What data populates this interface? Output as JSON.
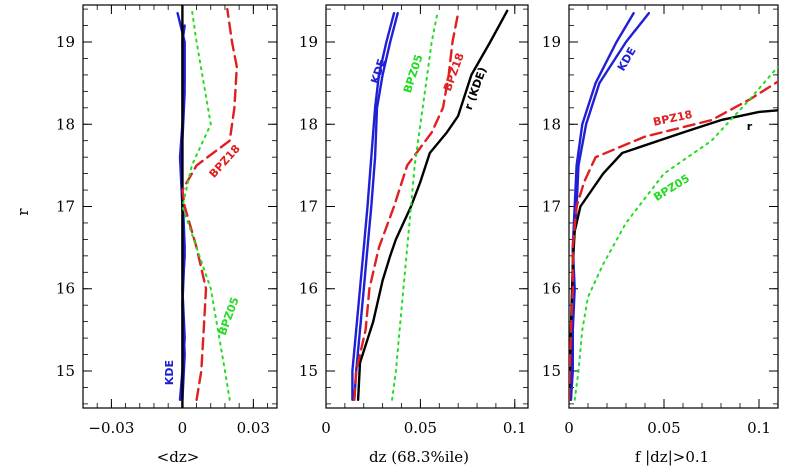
{
  "chart_data": [
    {
      "type": "line",
      "xlabel": "<dz>",
      "ylabel": "r",
      "xlim": [
        -0.042,
        0.04
      ],
      "ylim": [
        14.55,
        19.45
      ],
      "xticks": [
        -0.03,
        0,
        0.03
      ],
      "xtick_labels": [
        "−0.03",
        "0",
        "0.03"
      ],
      "yticks": [
        15,
        16,
        17,
        18,
        19
      ],
      "ytick_labels": [
        "15",
        "16",
        "17",
        "18",
        "19"
      ],
      "series": [
        {
          "key": "kde",
          "color": "#1f1fd6",
          "dash": "solid",
          "points": [
            [
              -0.001,
              14.65
            ],
            [
              0.0,
              15.0
            ],
            [
              0.001,
              15.4
            ],
            [
              0.0,
              16.0
            ],
            [
              0.001,
              16.4
            ],
            [
              0.0,
              17.0
            ],
            [
              -0.001,
              17.6
            ],
            [
              0.0,
              18.0
            ],
            [
              0.001,
              18.5
            ],
            [
              0.001,
              19.0
            ],
            [
              -0.002,
              19.35
            ]
          ]
        },
        {
          "key": "kde_2",
          "color": "#1f1fd6",
          "dash": "solid",
          "points": [
            [
              0.0,
              14.65
            ],
            [
              0.001,
              15.2
            ],
            [
              0.0,
              15.8
            ],
            [
              0.001,
              16.5
            ],
            [
              0.0,
              17.2
            ],
            [
              0.0,
              17.8
            ],
            [
              0.001,
              18.4
            ],
            [
              0.0,
              19.0
            ],
            [
              0.001,
              19.2
            ]
          ]
        },
        {
          "key": "r_kde",
          "color": "#000000",
          "dash": "solid",
          "points": [
            [
              0.0,
              14.55
            ],
            [
              0.0,
              19.45
            ]
          ]
        },
        {
          "key": "bpz18",
          "color": "#e02020",
          "dash": "dashed",
          "points": [
            [
              0.006,
              14.65
            ],
            [
              0.008,
              15.0
            ],
            [
              0.009,
              15.5
            ],
            [
              0.01,
              16.0
            ],
            [
              0.006,
              16.5
            ],
            [
              0.001,
              17.0
            ],
            [
              0.0,
              17.2
            ],
            [
              0.006,
              17.5
            ],
            [
              0.02,
              17.8
            ],
            [
              0.022,
              18.2
            ],
            [
              0.023,
              18.7
            ],
            [
              0.021,
              19.0
            ],
            [
              0.019,
              19.4
            ]
          ]
        },
        {
          "key": "bpz05",
          "color": "#22dd22",
          "dash": "dotted",
          "points": [
            [
              0.02,
              14.65
            ],
            [
              0.018,
              15.0
            ],
            [
              0.015,
              15.5
            ],
            [
              0.012,
              16.0
            ],
            [
              0.006,
              16.5
            ],
            [
              0.0,
              17.0
            ],
            [
              0.004,
              17.5
            ],
            [
              0.012,
              18.0
            ],
            [
              0.009,
              18.5
            ],
            [
              0.006,
              19.0
            ],
            [
              0.004,
              19.4
            ]
          ]
        }
      ],
      "annotations": [
        {
          "text": "KDE",
          "color": "#1f1fd6",
          "x": -0.004,
          "y": 14.98,
          "rotate": -90
        },
        {
          "text": "BPZ18",
          "color": "#e02020",
          "x": 0.019,
          "y": 17.52,
          "rotate": -48
        },
        {
          "text": "BPZ05",
          "color": "#22dd22",
          "x": 0.021,
          "y": 15.65,
          "rotate": -70
        }
      ]
    },
    {
      "type": "line",
      "xlabel": "dz  (68.3%ile)",
      "ylabel": "",
      "xlim": [
        0,
        0.107
      ],
      "ylim": [
        14.55,
        19.45
      ],
      "xticks": [
        0,
        0.05,
        0.1
      ],
      "xtick_labels": [
        "0",
        "0.05",
        "0.1"
      ],
      "yticks": [
        15,
        16,
        17,
        18,
        19
      ],
      "ytick_labels": [
        "15",
        "16",
        "17",
        "18",
        "19"
      ],
      "series": [
        {
          "key": "kde",
          "color": "#1f1fd6",
          "dash": "solid",
          "points": [
            [
              0.014,
              14.65
            ],
            [
              0.014,
              15.0
            ],
            [
              0.016,
              15.5
            ],
            [
              0.018,
              16.0
            ],
            [
              0.02,
              16.5
            ],
            [
              0.022,
              17.0
            ],
            [
              0.024,
              17.6
            ],
            [
              0.026,
              18.2
            ],
            [
              0.028,
              18.6
            ],
            [
              0.032,
              19.0
            ],
            [
              0.036,
              19.35
            ]
          ]
        },
        {
          "key": "kde_2",
          "color": "#1f1fd6",
          "dash": "solid",
          "points": [
            [
              0.015,
              14.65
            ],
            [
              0.016,
              15.0
            ],
            [
              0.018,
              15.5
            ],
            [
              0.02,
              16.0
            ],
            [
              0.022,
              16.5
            ],
            [
              0.024,
              17.0
            ],
            [
              0.026,
              17.6
            ],
            [
              0.027,
              18.2
            ],
            [
              0.03,
              18.6
            ],
            [
              0.034,
              19.0
            ],
            [
              0.038,
              19.35
            ]
          ]
        },
        {
          "key": "r_kde",
          "color": "#000000",
          "dash": "solid",
          "points": [
            [
              0.017,
              14.65
            ],
            [
              0.018,
              15.1
            ],
            [
              0.025,
              15.6
            ],
            [
              0.03,
              16.1
            ],
            [
              0.034,
              16.4
            ],
            [
              0.037,
              16.6
            ],
            [
              0.045,
              17.0
            ],
            [
              0.05,
              17.3
            ],
            [
              0.055,
              17.65
            ],
            [
              0.064,
              17.9
            ],
            [
              0.07,
              18.1
            ],
            [
              0.077,
              18.6
            ],
            [
              0.087,
              19.0
            ],
            [
              0.096,
              19.38
            ]
          ]
        },
        {
          "key": "bpz18",
          "color": "#e02020",
          "dash": "dashed",
          "points": [
            [
              0.015,
              14.65
            ],
            [
              0.016,
              15.0
            ],
            [
              0.021,
              15.5
            ],
            [
              0.023,
              16.0
            ],
            [
              0.028,
              16.5
            ],
            [
              0.036,
              17.0
            ],
            [
              0.043,
              17.5
            ],
            [
              0.056,
              17.9
            ],
            [
              0.062,
              18.2
            ],
            [
              0.065,
              18.6
            ],
            [
              0.067,
              19.0
            ],
            [
              0.07,
              19.35
            ]
          ]
        },
        {
          "key": "bpz05",
          "color": "#22dd22",
          "dash": "dotted",
          "points": [
            [
              0.035,
              14.65
            ],
            [
              0.037,
              15.0
            ],
            [
              0.039,
              15.5
            ],
            [
              0.041,
              16.0
            ],
            [
              0.043,
              16.5
            ],
            [
              0.045,
              17.0
            ],
            [
              0.047,
              17.5
            ],
            [
              0.05,
              18.0
            ],
            [
              0.053,
              18.5
            ],
            [
              0.056,
              19.0
            ],
            [
              0.059,
              19.35
            ]
          ]
        }
      ],
      "annotations": [
        {
          "text": "KDE",
          "color": "#1f1fd6",
          "x": 0.0295,
          "y": 18.63,
          "rotate": -72
        },
        {
          "text": "BPZ05",
          "color": "#22dd22",
          "x": 0.048,
          "y": 18.6,
          "rotate": -72
        },
        {
          "text": "BPZ18",
          "color": "#e02020",
          "x": 0.0695,
          "y": 18.62,
          "rotate": -70
        },
        {
          "text": "r (KDE)",
          "color": "#000000",
          "x": 0.081,
          "y": 18.42,
          "rotate": -70
        }
      ]
    },
    {
      "type": "line",
      "xlabel": "f  |dz|>0.1",
      "ylabel": "",
      "xlim": [
        0,
        0.11
      ],
      "ylim": [
        14.55,
        19.45
      ],
      "xticks": [
        0,
        0.05,
        0.1
      ],
      "xtick_labels": [
        "0",
        "0.05",
        "0.1"
      ],
      "yticks": [
        15,
        16,
        17,
        18,
        19
      ],
      "ytick_labels": [
        "15",
        "16",
        "17",
        "18",
        "19"
      ],
      "series": [
        {
          "key": "kde",
          "color": "#1f1fd6",
          "dash": "solid",
          "points": [
            [
              0.001,
              14.65
            ],
            [
              0.001,
              15.0
            ],
            [
              0.002,
              15.5
            ],
            [
              0.002,
              16.0
            ],
            [
              0.002,
              16.5
            ],
            [
              0.003,
              17.0
            ],
            [
              0.004,
              17.5
            ],
            [
              0.007,
              18.0
            ],
            [
              0.014,
              18.5
            ],
            [
              0.025,
              19.0
            ],
            [
              0.034,
              19.35
            ]
          ]
        },
        {
          "key": "kde_2",
          "color": "#1f1fd6",
          "dash": "solid",
          "points": [
            [
              0.001,
              14.65
            ],
            [
              0.002,
              15.0
            ],
            [
              0.002,
              15.5
            ],
            [
              0.003,
              16.0
            ],
            [
              0.002,
              16.5
            ],
            [
              0.004,
              17.0
            ],
            [
              0.005,
              17.5
            ],
            [
              0.009,
              18.0
            ],
            [
              0.016,
              18.5
            ],
            [
              0.03,
              19.0
            ],
            [
              0.042,
              19.35
            ]
          ]
        },
        {
          "key": "r_kde",
          "color": "#000000",
          "dash": "solid",
          "points": [
            [
              0.0,
              14.65
            ],
            [
              0.001,
              15.5
            ],
            [
              0.002,
              16.3
            ],
            [
              0.003,
              16.7
            ],
            [
              0.006,
              17.0
            ],
            [
              0.018,
              17.4
            ],
            [
              0.028,
              17.65
            ],
            [
              0.06,
              17.9
            ],
            [
              0.08,
              18.05
            ],
            [
              0.1,
              18.15
            ],
            [
              0.11,
              18.17
            ]
          ]
        },
        {
          "key": "bpz18",
          "color": "#e02020",
          "dash": "dashed",
          "points": [
            [
              0.0,
              14.65
            ],
            [
              0.001,
              15.5
            ],
            [
              0.002,
              16.0
            ],
            [
              0.002,
              16.5
            ],
            [
              0.004,
              17.0
            ],
            [
              0.008,
              17.3
            ],
            [
              0.014,
              17.6
            ],
            [
              0.04,
              17.85
            ],
            [
              0.075,
              18.05
            ],
            [
              0.095,
              18.3
            ],
            [
              0.11,
              18.52
            ]
          ]
        },
        {
          "key": "bpz05",
          "color": "#22dd22",
          "dash": "dotted",
          "points": [
            [
              0.003,
              14.65
            ],
            [
              0.005,
              15.0
            ],
            [
              0.007,
              15.5
            ],
            [
              0.01,
              15.9
            ],
            [
              0.018,
              16.3
            ],
            [
              0.03,
              16.8
            ],
            [
              0.05,
              17.4
            ],
            [
              0.075,
              17.8
            ],
            [
              0.095,
              18.3
            ],
            [
              0.11,
              18.7
            ]
          ]
        }
      ],
      "annotations": [
        {
          "text": "KDE",
          "color": "#1f1fd6",
          "x": 0.032,
          "y": 18.77,
          "rotate": -60
        },
        {
          "text": "BPZ18",
          "color": "#e02020",
          "x": 0.055,
          "y": 18.03,
          "rotate": -12
        },
        {
          "text": "BPZ05",
          "color": "#22dd22",
          "x": 0.055,
          "y": 17.19,
          "rotate": -32
        },
        {
          "text": "r",
          "color": "#000000",
          "x": 0.095,
          "y": 17.93,
          "rotate": 0
        }
      ]
    }
  ]
}
